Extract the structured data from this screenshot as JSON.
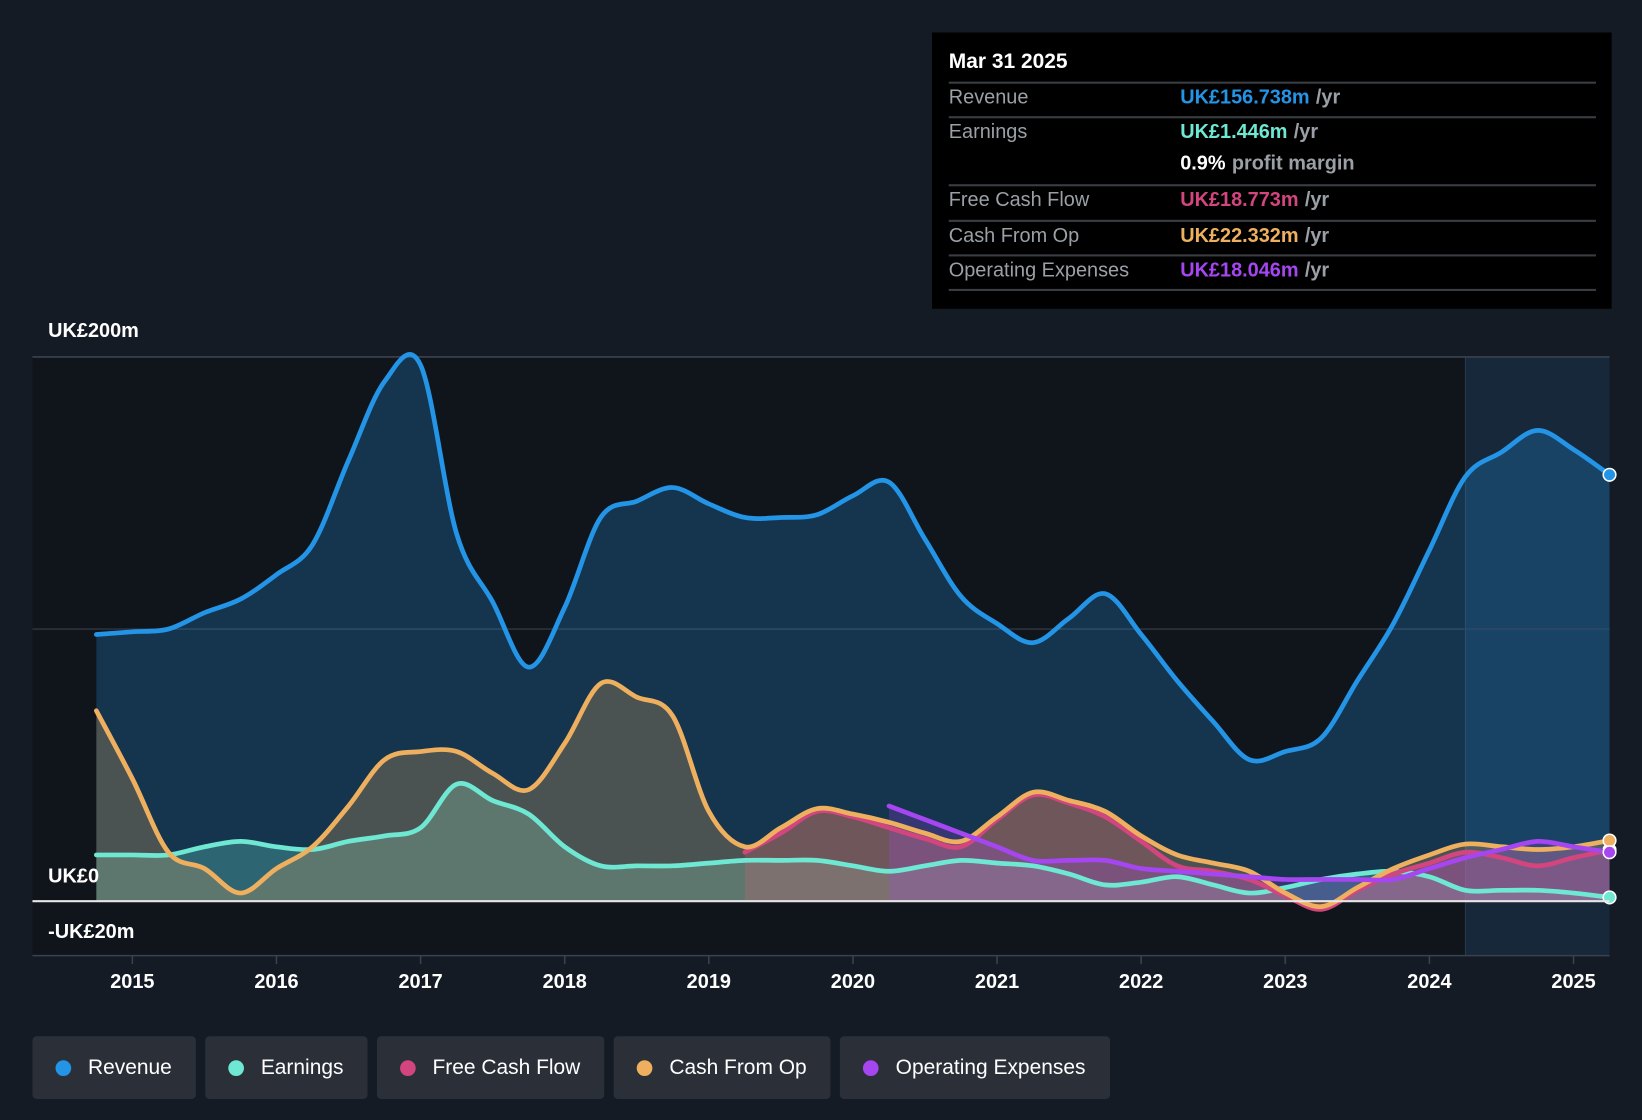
{
  "tooltip": {
    "date": "Mar 31 2025",
    "rows": [
      {
        "label": "Revenue",
        "value": "UK£156.738m",
        "unit": "/yr",
        "color": "#2394e6"
      },
      {
        "label": "Earnings",
        "value": "UK£1.446m",
        "unit": "/yr",
        "color": "#6ee7d3"
      },
      {
        "label": "",
        "value": "0.9%",
        "unit": "profit margin",
        "color": "#ffffff"
      },
      {
        "label": "Free Cash Flow",
        "value": "UK£18.773m",
        "unit": "/yr",
        "color": "#d2457e"
      },
      {
        "label": "Cash From Op",
        "value": "UK£22.332m",
        "unit": "/yr",
        "color": "#eeb05e"
      },
      {
        "label": "Operating Expenses",
        "value": "UK£18.046m",
        "unit": "/yr",
        "color": "#a546f0"
      }
    ]
  },
  "chart_data": {
    "type": "area",
    "y_unit": "UK£m",
    "ylim": [
      -20,
      200
    ],
    "y_tick_labels": [
      {
        "value": 200,
        "label": "UK£200m"
      },
      {
        "value": 0,
        "label": "UK£0"
      },
      {
        "value": -20,
        "label": "-UK£20m"
      }
    ],
    "x_ticks": [
      2015,
      2016,
      2017,
      2018,
      2019,
      2020,
      2021,
      2022,
      2023,
      2024,
      2025
    ],
    "x_tick_labels": [
      "2015",
      "2016",
      "2017",
      "2018",
      "2019",
      "2020",
      "2021",
      "2022",
      "2023",
      "2024",
      "2025"
    ],
    "xlim": [
      2014.75,
      2025.25
    ],
    "highlight_from": 2024.25,
    "x_start": 2014.75,
    "x_step": 0.25,
    "series": [
      {
        "name": "Revenue",
        "color": "#2394e6",
        "start": 2014.75,
        "values": [
          98,
          99,
          100,
          106,
          111,
          120,
          131,
          162,
          191,
          197,
          135,
          110,
          86,
          108,
          141,
          147,
          152,
          146,
          141,
          141,
          142,
          149,
          154,
          133,
          112,
          102,
          95,
          104,
          113,
          98,
          81,
          66,
          52,
          55,
          60,
          81,
          102,
          129,
          156,
          165,
          173,
          166,
          156.7
        ]
      },
      {
        "name": "Earnings",
        "color": "#6ee7d3",
        "start": 2014.75,
        "values": [
          17,
          17,
          17,
          20,
          22,
          20,
          19,
          22,
          24,
          27,
          43,
          37,
          32,
          20,
          13,
          13,
          13,
          14,
          15,
          15,
          15,
          13,
          11,
          13,
          15,
          14,
          13,
          10,
          6,
          7,
          9,
          6,
          3,
          5,
          8,
          10,
          11,
          9,
          4,
          4,
          4,
          3,
          1.4
        ]
      },
      {
        "name": "Free Cash Flow",
        "color": "#d2457e",
        "start": 2019.25,
        "values": [
          18,
          25,
          33,
          31,
          27,
          23,
          20,
          30,
          39,
          36,
          31,
          22,
          13,
          11,
          8,
          2,
          -3,
          4,
          10,
          14,
          18,
          16,
          13,
          16,
          18.8
        ]
      },
      {
        "name": "Cash From Op",
        "color": "#eeb05e",
        "start": 2014.75,
        "values": [
          70,
          45,
          18,
          12,
          3,
          12,
          20,
          35,
          52,
          55,
          55,
          47,
          41,
          58,
          80,
          75,
          68,
          33,
          20,
          27,
          34,
          32,
          29,
          25,
          22,
          31,
          40,
          37,
          33,
          24,
          17,
          14,
          11,
          3,
          -2,
          5,
          12,
          17,
          21,
          20,
          19,
          20,
          22.3
        ]
      },
      {
        "name": "Operating Expenses",
        "color": "#a546f0",
        "start": 2020.25,
        "values": [
          35,
          30,
          25,
          20,
          15,
          15,
          15,
          12,
          11,
          10,
          9,
          8,
          8,
          8,
          8,
          12,
          16,
          19,
          22,
          20,
          18
        ]
      }
    ]
  },
  "legend": [
    {
      "label": "Revenue",
      "color": "#2394e6"
    },
    {
      "label": "Earnings",
      "color": "#6ee7d3"
    },
    {
      "label": "Free Cash Flow",
      "color": "#d2457e"
    },
    {
      "label": "Cash From Op",
      "color": "#eeb05e"
    },
    {
      "label": "Operating Expenses",
      "color": "#a546f0"
    }
  ]
}
